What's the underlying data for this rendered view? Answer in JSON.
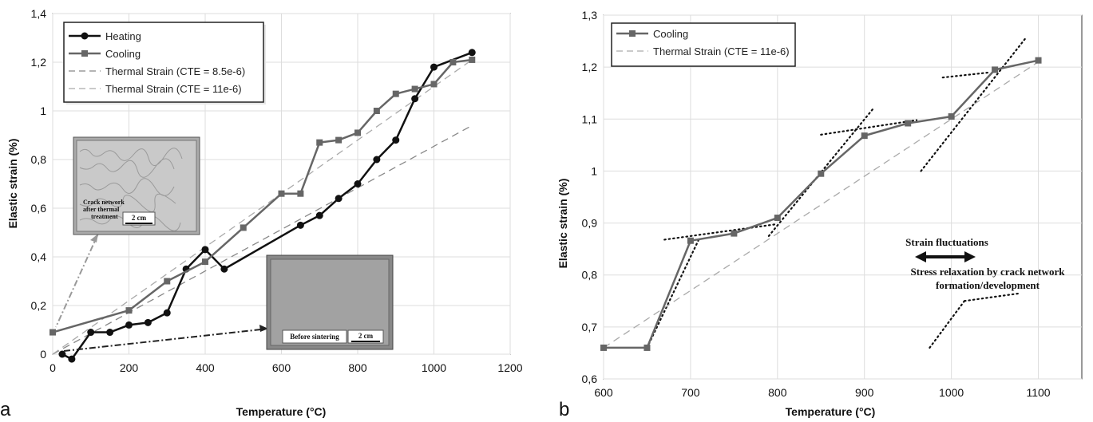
{
  "chart_data": [
    {
      "type": "line",
      "panel_label": "a",
      "xlabel": "Temperature (°C)",
      "ylabel": "Elastic strain (%)",
      "xlim": [
        0,
        1200
      ],
      "ylim": [
        0,
        1.4
      ],
      "x_ticks": [
        "0",
        "200",
        "400",
        "600",
        "800",
        "1000",
        "1200"
      ],
      "y_ticks": [
        "0",
        "0,2",
        "0,4",
        "0,6",
        "0,8",
        "1",
        "1,2",
        "1,4"
      ],
      "grid": true,
      "legend_position": "top-left",
      "series": [
        {
          "name": "Heating",
          "color": "#111111",
          "marker": "circle",
          "x": [
            25,
            50,
            100,
            150,
            200,
            250,
            300,
            350,
            400,
            450,
            650,
            700,
            750,
            800,
            850,
            900,
            950,
            1000,
            1100
          ],
          "y": [
            0.0,
            -0.02,
            0.09,
            0.09,
            0.12,
            0.13,
            0.17,
            0.35,
            0.43,
            0.35,
            0.53,
            0.57,
            0.64,
            0.7,
            0.8,
            0.88,
            1.05,
            1.18,
            1.24
          ]
        },
        {
          "name": "Cooling",
          "color": "#666666",
          "marker": "square",
          "x": [
            0,
            200,
            300,
            400,
            500,
            600,
            650,
            700,
            750,
            800,
            850,
            900,
            950,
            1000,
            1050,
            1100
          ],
          "y": [
            0.09,
            0.18,
            0.3,
            0.38,
            0.52,
            0.66,
            0.66,
            0.87,
            0.88,
            0.91,
            1.0,
            1.07,
            1.09,
            1.11,
            1.2,
            1.21
          ]
        },
        {
          "name": "Thermal Strain (CTE = 8.5e-6)",
          "color": "#888888",
          "style": "dashed",
          "x": [
            0,
            1100
          ],
          "y": [
            0.0,
            0.94
          ]
        },
        {
          "name": "Thermal Strain (CTE = 11e-6)",
          "color": "#aaaaaa",
          "style": "dashed",
          "x": [
            0,
            1100
          ],
          "y": [
            0.0,
            1.21
          ]
        }
      ],
      "insets": [
        {
          "caption_lines": [
            "Crack network",
            "after thermal",
            "treatment"
          ],
          "scale_label": "2 cm"
        },
        {
          "caption": "Before sintering",
          "scale_label": "2 cm"
        }
      ]
    },
    {
      "type": "line",
      "panel_label": "b",
      "xlabel": "Temperature (°C)",
      "ylabel": "Elastic strain (%)",
      "xlim": [
        600,
        1150
      ],
      "ylim": [
        0.6,
        1.3
      ],
      "x_ticks": [
        "600",
        "700",
        "800",
        "900",
        "1000",
        "1100"
      ],
      "y_ticks": [
        "0,6",
        "0,7",
        "0,8",
        "0,9",
        "1",
        "1,1",
        "1,2",
        "1,3"
      ],
      "grid": true,
      "legend_position": "top-left",
      "series": [
        {
          "name": "Cooling",
          "color": "#666666",
          "marker": "square",
          "x": [
            600,
            650,
            700,
            750,
            800,
            850,
            900,
            950,
            1000,
            1050,
            1100
          ],
          "y": [
            0.66,
            0.66,
            0.866,
            0.88,
            0.91,
            0.995,
            1.068,
            1.092,
            1.105,
            1.195,
            1.213
          ]
        },
        {
          "name": "Thermal Strain (CTE = 11e-6)",
          "color": "#aaaaaa",
          "style": "dashed",
          "x": [
            600,
            1100
          ],
          "y": [
            0.66,
            1.21
          ]
        }
      ],
      "trend_lines": [
        {
          "x": [
            650,
            710
          ],
          "y": [
            0.66,
            0.87
          ]
        },
        {
          "x": [
            670,
            800
          ],
          "y": [
            0.868,
            0.898
          ]
        },
        {
          "x": [
            790,
            910
          ],
          "y": [
            0.875,
            1.12
          ]
        },
        {
          "x": [
            850,
            960
          ],
          "y": [
            1.07,
            1.098
          ]
        },
        {
          "x": [
            965,
            1085
          ],
          "y": [
            1.0,
            1.255
          ]
        },
        {
          "x": [
            990,
            1045
          ],
          "y": [
            1.18,
            1.19
          ]
        },
        {
          "x": [
            975,
            1015
          ],
          "y": [
            0.66,
            0.75
          ]
        },
        {
          "x": [
            1015,
            1080
          ],
          "y": [
            0.75,
            0.765
          ]
        }
      ],
      "annotations": [
        {
          "text": "Strain fluctuations"
        },
        {
          "text_lines": [
            "Stress relaxation by crack network",
            "formation/development"
          ]
        }
      ]
    }
  ]
}
